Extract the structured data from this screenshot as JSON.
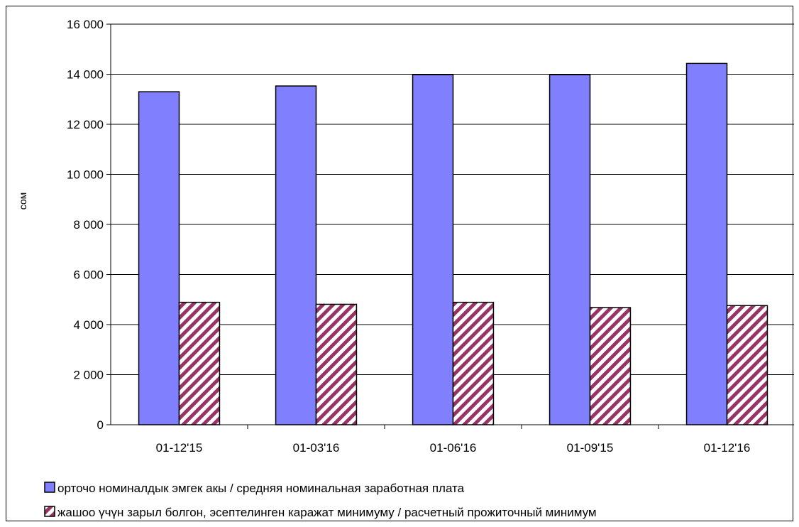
{
  "chart_data": {
    "type": "bar",
    "title": "",
    "xlabel": "",
    "ylabel": "сом",
    "categories": [
      "01-12'15",
      "01-03'16",
      "01-06'16",
      "01-09'15",
      "01-12'16"
    ],
    "series": [
      {
        "name": "орточо номиналдык эмгек акы / средняя номинальная заработная плата",
        "values": [
          13300,
          13530,
          13980,
          13980,
          14430
        ],
        "color": "#8080ff",
        "pattern": "solid"
      },
      {
        "name": "жашоо үчүн зарыл болгон, эсептелинген каражат минимуму / расчетный прожиточный минимум",
        "values": [
          4890,
          4810,
          4890,
          4680,
          4760
        ],
        "color": "#993366",
        "pattern": "diagonal-hatch"
      }
    ],
    "ylim": [
      0,
      16000
    ],
    "yticks": [
      0,
      2000,
      4000,
      6000,
      8000,
      10000,
      12000,
      14000,
      16000
    ],
    "ytick_labels": [
      "0",
      "2 000",
      "4 000",
      "6 000",
      "8 000",
      "10 000",
      "12 000",
      "14 000",
      "16 000"
    ],
    "grid": true,
    "legend_position": "bottom"
  }
}
